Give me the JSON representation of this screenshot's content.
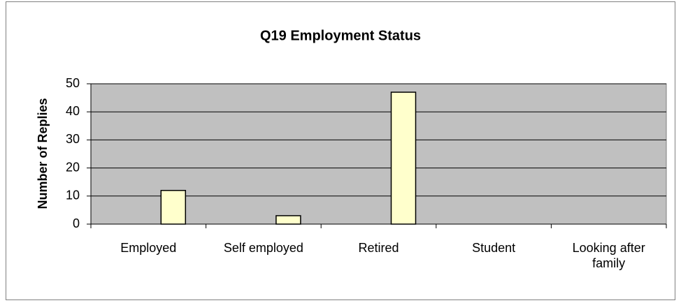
{
  "chart_data": {
    "type": "bar",
    "title": "Q19 Employment Status",
    "y_label": "Number of Replies",
    "categories": [
      "Employed",
      "Self employed",
      "Retired",
      "Student",
      "Looking after family"
    ],
    "values": [
      12,
      3,
      47,
      0,
      0
    ],
    "color": "#ffffcc",
    "ylim": [
      0,
      50
    ],
    "yticks": [
      0,
      10,
      20,
      30,
      40,
      50
    ],
    "grid": true,
    "plot_background": "#c0c0c0"
  }
}
